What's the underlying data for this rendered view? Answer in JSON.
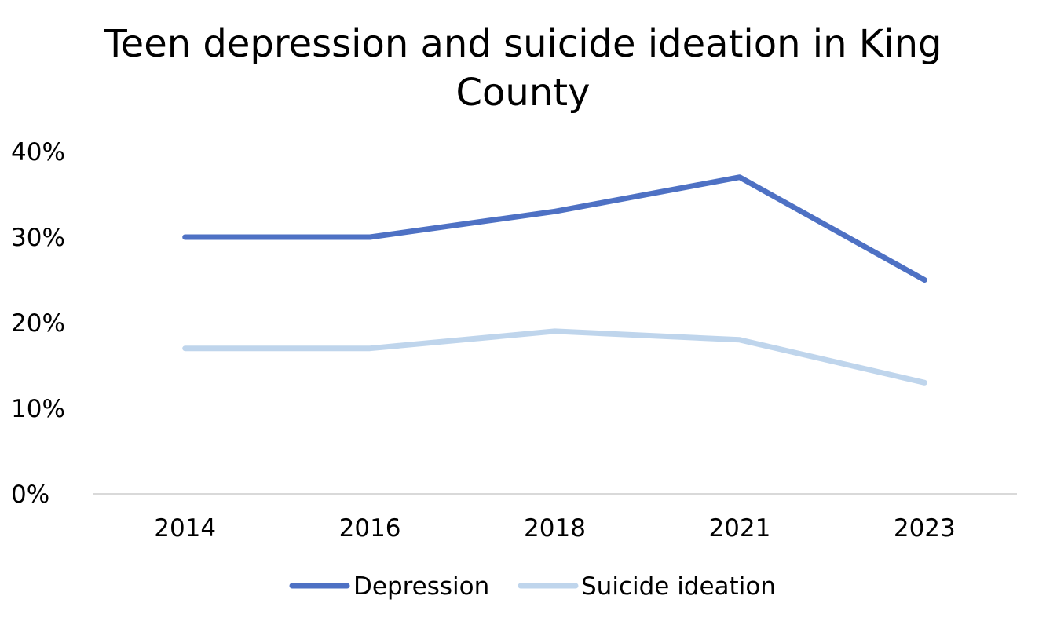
{
  "chart_data": {
    "type": "line",
    "title": "Teen depression and suicide ideation in King County",
    "title_lines": [
      "Teen depression and suicide ideation in King",
      "County"
    ],
    "categories": [
      "2014",
      "2016",
      "2018",
      "2021",
      "2023"
    ],
    "series": [
      {
        "name": "Depression",
        "values": [
          30,
          30,
          33,
          37,
          25
        ],
        "color": "#4E71C4"
      },
      {
        "name": "Suicide ideation",
        "values": [
          17,
          17,
          19,
          18,
          13
        ],
        "color": "#BFD5EC"
      }
    ],
    "ylim": [
      0,
      40
    ],
    "yticks": [
      0,
      10,
      20,
      30,
      40
    ],
    "ytick_labels": [
      "0%",
      "10%",
      "20%",
      "30%",
      "40%"
    ],
    "xlabel": "",
    "ylabel": "",
    "grid": false,
    "legend_position": "bottom",
    "axis_color": "#D9D9D9"
  }
}
